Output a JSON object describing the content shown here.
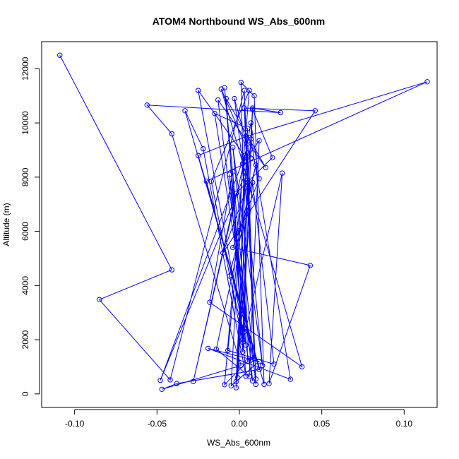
{
  "chart_data": {
    "type": "line",
    "title": "ATOM4 Northbound WS_Abs_600nm",
    "xlabel": "WS_Abs_600nm",
    "ylabel": "Altitude (m)",
    "xlim": [
      -0.12,
      0.12
    ],
    "ylim": [
      -500,
      13000
    ],
    "xticks": [
      -0.1,
      -0.05,
      0.0,
      0.05,
      0.1
    ],
    "xtick_labels": [
      "-0.10",
      "-0.05",
      "0.00",
      "0.05",
      "0.10"
    ],
    "yticks": [
      0,
      2000,
      4000,
      6000,
      8000,
      10000,
      12000
    ],
    "ytick_labels": [
      "0",
      "2000",
      "4000",
      "6000",
      "8000",
      "10000",
      "12000"
    ],
    "grid": false,
    "legend": "none",
    "series_color": "#0000ff",
    "marker": "open-circle",
    "x": [
      -0.109,
      -0.041,
      -0.085,
      -0.042,
      0.003,
      0.01,
      -0.015,
      0.005,
      -0.002,
      0.008,
      0.025,
      -0.056,
      -0.041,
      0.001,
      -0.047,
      -0.038,
      0.012,
      -0.033,
      -0.022,
      0.004,
      -0.006,
      0.007,
      -0.013,
      0.016,
      -0.008,
      0.002,
      0.005,
      -0.001,
      0.003,
      -0.025,
      0.008,
      -0.009,
      0.004,
      -0.006,
      0.01,
      -0.014,
      0.006,
      0.012,
      0.002,
      -0.003,
      0.007,
      -0.011,
      0.005,
      0.038,
      -0.018,
      -0.004,
      0.002,
      0.008,
      0.02,
      -0.002,
      -0.028,
      0.003,
      0.007,
      0.012,
      -0.004,
      0.043,
      0.018,
      0.026,
      0.002,
      -0.017,
      0.006,
      -0.009,
      0.005,
      0.001,
      0.009,
      0.015,
      -0.025,
      0.004,
      0.114,
      -0.02,
      0.009,
      0.003,
      0.046,
      -0.01,
      0.005,
      -0.002,
      0.008,
      0.021,
      -0.007,
      0.004,
      -0.048,
      0.007,
      0.031,
      -0.019,
      0.012,
      -0.005,
      0.002,
      0.014,
      -0.004,
      0.01,
      0.005,
      0.003
    ],
    "y": [
      12500,
      4580,
      3480,
      520,
      11200,
      550,
      10350,
      9800,
      450,
      10550,
      10380,
      10660,
      9600,
      1050,
      170,
      380,
      900,
      10450,
      9050,
      650,
      8100,
      1250,
      10850,
      8350,
      10900,
      2000,
      7800,
      600,
      8800,
      11200,
      480,
      11300,
      1800,
      4350,
      8450,
      1650,
      650,
      9350,
      8500,
      10900,
      8700,
      11250,
      7900,
      1000,
      3380,
      8200,
      1550,
      10500,
      8720,
      7400,
      460,
      8600,
      10000,
      7950,
      5400,
      4740,
      380,
      8150,
      1900,
      7850,
      11200,
      340,
      1200,
      11500,
      11000,
      350,
      8800,
      9500,
      11520,
      7850,
      1300,
      10550,
      10450,
      5200,
      7700,
      230,
      7800,
      1100,
      1600,
      8200,
      500,
      9400,
      540,
      1680,
      1200,
      300,
      8500,
      1050,
      9100,
      350,
      8900,
      2300
    ]
  }
}
